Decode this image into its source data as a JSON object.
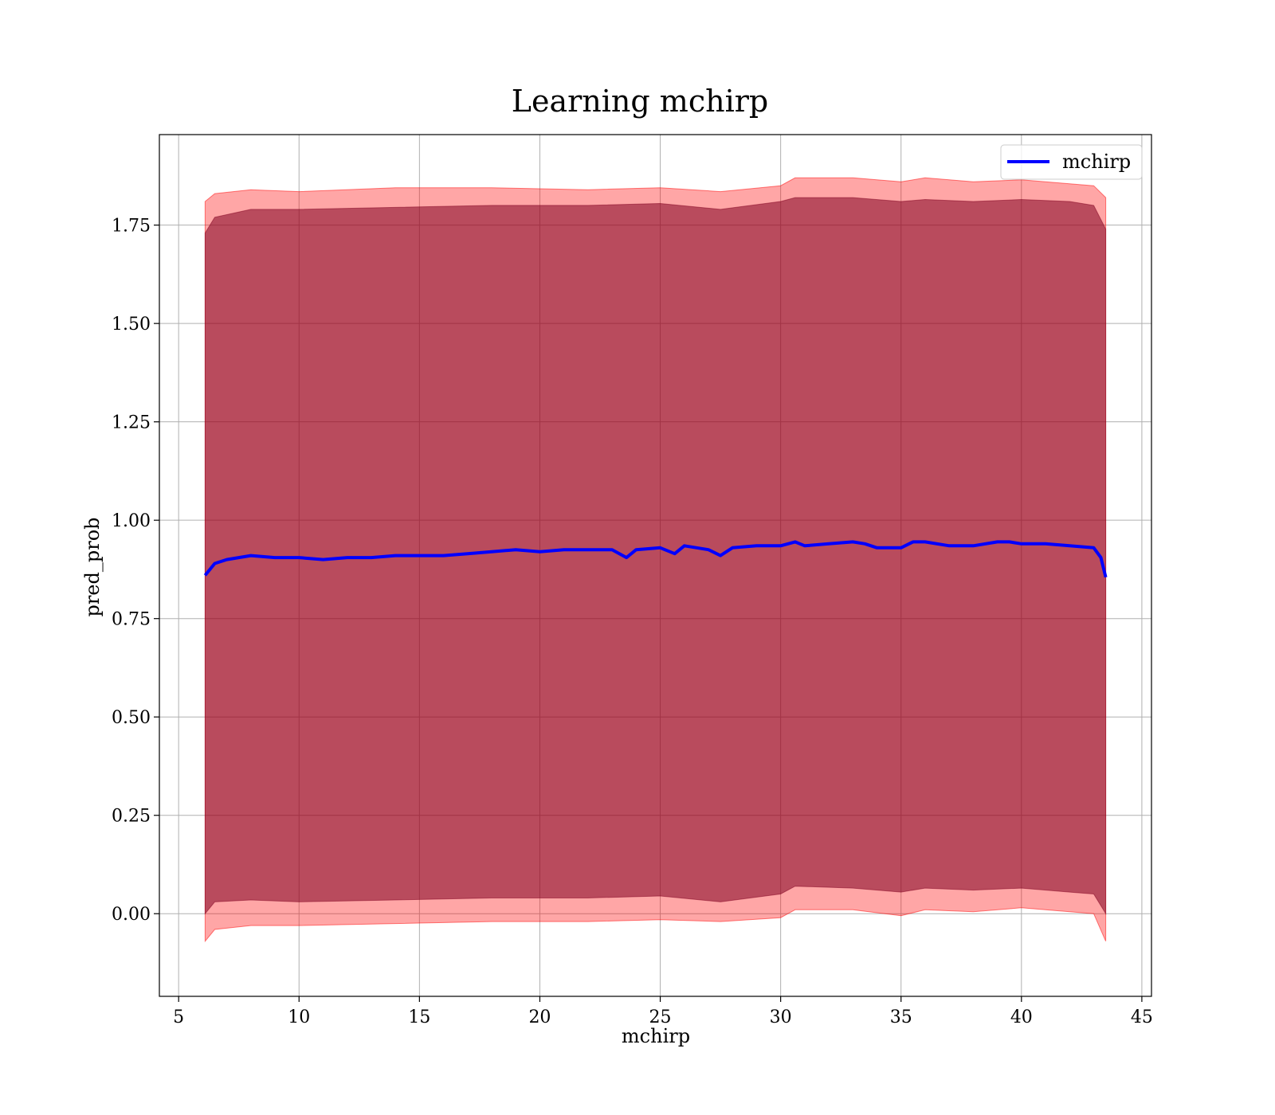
{
  "chart_data": {
    "type": "line",
    "title": "Learning mchirp",
    "xlabel": "mchirp",
    "ylabel": "pred_prob",
    "xlim": [
      4.2,
      45.4
    ],
    "ylim": [
      -0.21,
      1.98
    ],
    "xticks": [
      5,
      10,
      15,
      20,
      25,
      30,
      35,
      40,
      45
    ],
    "xtick_labels": [
      "5",
      "10",
      "15",
      "20",
      "25",
      "30",
      "35",
      "40",
      "45"
    ],
    "yticks": [
      0.0,
      0.25,
      0.5,
      0.75,
      1.0,
      1.25,
      1.5,
      1.75
    ],
    "ytick_labels": [
      "0.00",
      "0.25",
      "0.50",
      "0.75",
      "1.00",
      "1.25",
      "1.50",
      "1.75"
    ],
    "grid": true,
    "legend_position": "top-right",
    "series": [
      {
        "name": "mchirp",
        "color": "#0000ff",
        "x": [
          6.1,
          6.5,
          7,
          8,
          9,
          10,
          11,
          12,
          13,
          14,
          15,
          16,
          17,
          18,
          19,
          20,
          21,
          22,
          23,
          23.6,
          24,
          25,
          25.6,
          26,
          27,
          27.5,
          28,
          29,
          30,
          30.6,
          31,
          32,
          33,
          33.5,
          34,
          35,
          35.5,
          36,
          37,
          38,
          39,
          39.5,
          40,
          41,
          42,
          43,
          43.3,
          43.5
        ],
        "y": [
          0.86,
          0.89,
          0.9,
          0.91,
          0.905,
          0.905,
          0.9,
          0.905,
          0.905,
          0.91,
          0.91,
          0.91,
          0.915,
          0.92,
          0.925,
          0.92,
          0.925,
          0.925,
          0.925,
          0.905,
          0.925,
          0.93,
          0.915,
          0.935,
          0.925,
          0.91,
          0.93,
          0.935,
          0.935,
          0.945,
          0.935,
          0.94,
          0.945,
          0.94,
          0.93,
          0.93,
          0.945,
          0.945,
          0.935,
          0.935,
          0.945,
          0.945,
          0.94,
          0.94,
          0.935,
          0.93,
          0.905,
          0.855
        ]
      }
    ],
    "bands": [
      {
        "color": "#ff0000",
        "opacity": 0.35,
        "x": [
          6.1,
          6.5,
          8,
          10,
          14,
          18,
          22,
          25,
          27.5,
          30,
          30.6,
          33,
          35,
          36,
          38,
          40,
          42,
          43,
          43.5
        ],
        "upper": [
          1.81,
          1.83,
          1.84,
          1.835,
          1.845,
          1.845,
          1.84,
          1.845,
          1.835,
          1.85,
          1.87,
          1.87,
          1.86,
          1.87,
          1.86,
          1.865,
          1.855,
          1.85,
          1.82
        ],
        "lower": [
          -0.07,
          -0.04,
          -0.03,
          -0.03,
          -0.025,
          -0.02,
          -0.02,
          -0.015,
          -0.02,
          -0.01,
          0.01,
          0.01,
          -0.005,
          0.01,
          0.005,
          0.015,
          0.005,
          0.0,
          -0.07
        ]
      },
      {
        "color": "#800020",
        "opacity": 0.55,
        "x": [
          6.1,
          6.5,
          8,
          10,
          14,
          18,
          22,
          25,
          27.5,
          30,
          30.6,
          33,
          35,
          36,
          38,
          40,
          42,
          43,
          43.5
        ],
        "upper": [
          1.73,
          1.77,
          1.79,
          1.79,
          1.795,
          1.8,
          1.8,
          1.805,
          1.79,
          1.81,
          1.82,
          1.82,
          1.81,
          1.815,
          1.81,
          1.815,
          1.81,
          1.8,
          1.74
        ],
        "lower": [
          0.0,
          0.03,
          0.035,
          0.03,
          0.035,
          0.04,
          0.04,
          0.045,
          0.03,
          0.05,
          0.07,
          0.065,
          0.055,
          0.065,
          0.06,
          0.065,
          0.055,
          0.05,
          0.0
        ]
      }
    ]
  }
}
